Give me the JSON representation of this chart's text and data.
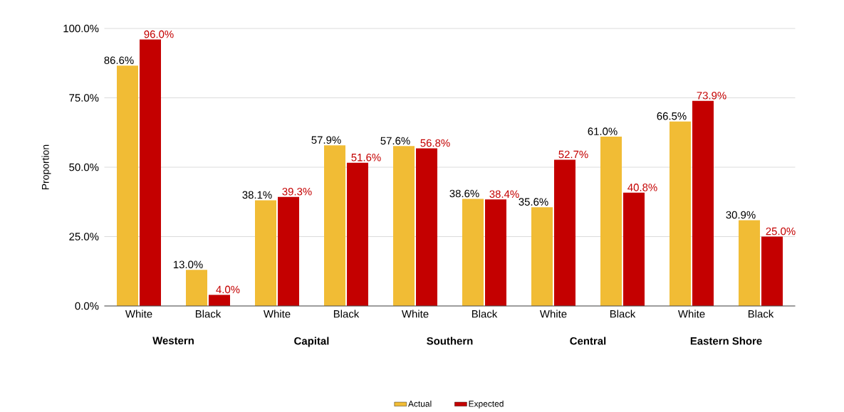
{
  "chart_data": {
    "type": "bar",
    "ylabel": "Proportion",
    "categories": [
      "White",
      "Black",
      "White",
      "Black",
      "White",
      "Black",
      "White",
      "Black",
      "White",
      "Black"
    ],
    "series": [
      {
        "name": "Actual",
        "color": "#f1bc35",
        "values": [
          86.6,
          13.0,
          38.1,
          57.9,
          57.6,
          38.6,
          35.6,
          61.0,
          66.5,
          30.9
        ],
        "value_labels": [
          "86.6%",
          "13.0%",
          "38.1%",
          "57.9%",
          "57.6%",
          "38.6%",
          "35.6%",
          "61.0%",
          "66.5%",
          "30.9%"
        ]
      },
      {
        "name": "Expected",
        "color": "#c40000",
        "values": [
          96.0,
          4.0,
          39.3,
          51.6,
          56.8,
          38.4,
          52.7,
          40.8,
          73.9,
          25.0
        ],
        "value_labels": [
          "96.0%",
          "4.0%",
          "39.3%",
          "51.6%",
          "56.8%",
          "38.4%",
          "52.7%",
          "40.8%",
          "73.9%",
          "25.0%"
        ]
      }
    ],
    "annotations": [
      "Western",
      "Capital",
      "Southern",
      "Central",
      "Eastern Shore"
    ],
    "ylim": [
      0,
      100
    ],
    "yticks": [
      {
        "value": 0,
        "label": "0.0%"
      },
      {
        "value": 25,
        "label": "25.0%"
      },
      {
        "value": 50,
        "label": "50.0%"
      },
      {
        "value": 75,
        "label": "75.0%"
      },
      {
        "value": 100,
        "label": "100.0%"
      }
    ],
    "grid": "y",
    "legend": "bottom"
  }
}
